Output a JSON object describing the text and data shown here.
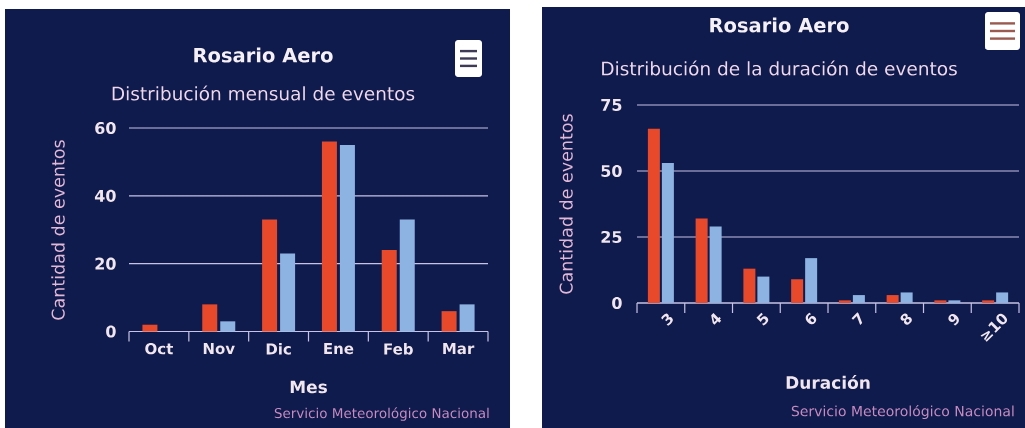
{
  "chart_data": [
    {
      "type": "bar",
      "title": "Rosario Aero",
      "subtitle": "Distribución mensual de eventos",
      "xlabel": "Mes",
      "ylabel": "Cantidad de eventos",
      "categories": [
        "Oct",
        "Nov",
        "Dic",
        "Ene",
        "Feb",
        "Mar"
      ],
      "series": [
        {
          "color": "#e8492a",
          "values": [
            2,
            8,
            33,
            56,
            24,
            6
          ]
        },
        {
          "color": "#8db3e2",
          "values": [
            null,
            3,
            23,
            55,
            33,
            8
          ]
        }
      ],
      "ylim": [
        0,
        60
      ],
      "yticks": [
        0,
        20,
        40,
        60
      ],
      "grid": "y",
      "annotations": [
        "Servicio Meteorológico Nacional"
      ]
    },
    {
      "type": "bar",
      "title": "Rosario Aero",
      "subtitle": "Distribución de la duración de eventos",
      "xlabel": "Duración",
      "ylabel": "Cantidad de eventos",
      "categories": [
        "3",
        "4",
        "5",
        "6",
        "7",
        "8",
        "9",
        "≥10"
      ],
      "series": [
        {
          "color": "#e8492a",
          "values": [
            66,
            32,
            13,
            9,
            1,
            3,
            1,
            1
          ]
        },
        {
          "color": "#8db3e2",
          "values": [
            53,
            29,
            10,
            17,
            3,
            4,
            1,
            4
          ]
        }
      ],
      "ylim": [
        0,
        75
      ],
      "yticks": [
        0,
        25,
        50,
        75
      ],
      "grid": "y",
      "annotations": [
        "Servicio Meteorológico Nacional"
      ]
    }
  ]
}
